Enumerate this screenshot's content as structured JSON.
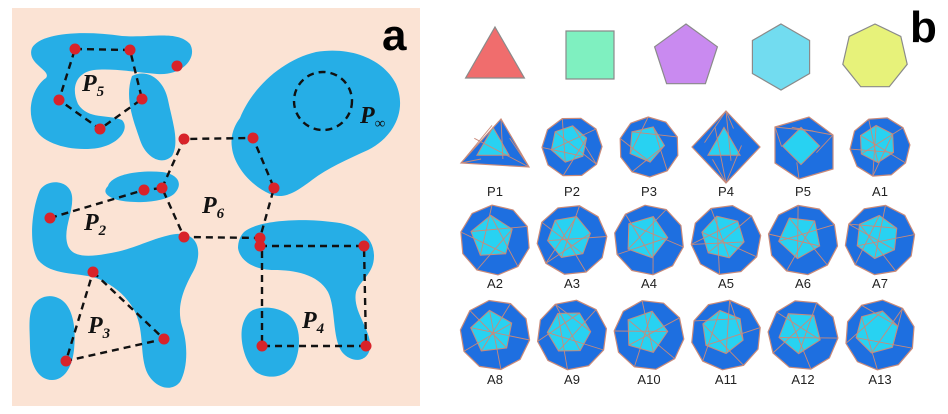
{
  "panels": {
    "a": {
      "letter": "a",
      "labels": [
        {
          "main": "P",
          "sub": "5"
        },
        {
          "main": "P",
          "sub": "2"
        },
        {
          "main": "P",
          "sub": "6"
        },
        {
          "main": "P",
          "sub": "3"
        },
        {
          "main": "P",
          "sub": "4"
        },
        {
          "main": "P",
          "sub": "∞"
        }
      ]
    },
    "b": {
      "letter": "b",
      "faces": [
        {
          "shape": "triangle",
          "color": "#f06d6d"
        },
        {
          "shape": "square",
          "color": "#7ff0c0"
        },
        {
          "shape": "pentagon",
          "color": "#c98af0"
        },
        {
          "shape": "hexagon",
          "color": "#72dcf0"
        },
        {
          "shape": "heptagon",
          "color": "#e7f27a"
        }
      ],
      "polyhedra": [
        "P1",
        "P2",
        "P3",
        "P4",
        "P5",
        "A1",
        "A2",
        "A3",
        "A4",
        "A5",
        "A6",
        "A7",
        "A8",
        "A9",
        "A10",
        "A11",
        "A12",
        "A13"
      ]
    }
  },
  "colors": {
    "background_a": "#fbe3d4",
    "blob": "#26aee6",
    "node": "#d8232a",
    "poly_light": "#28d2f2",
    "poly_dark": "#1e6fe0",
    "edge": "#c98a7a"
  }
}
